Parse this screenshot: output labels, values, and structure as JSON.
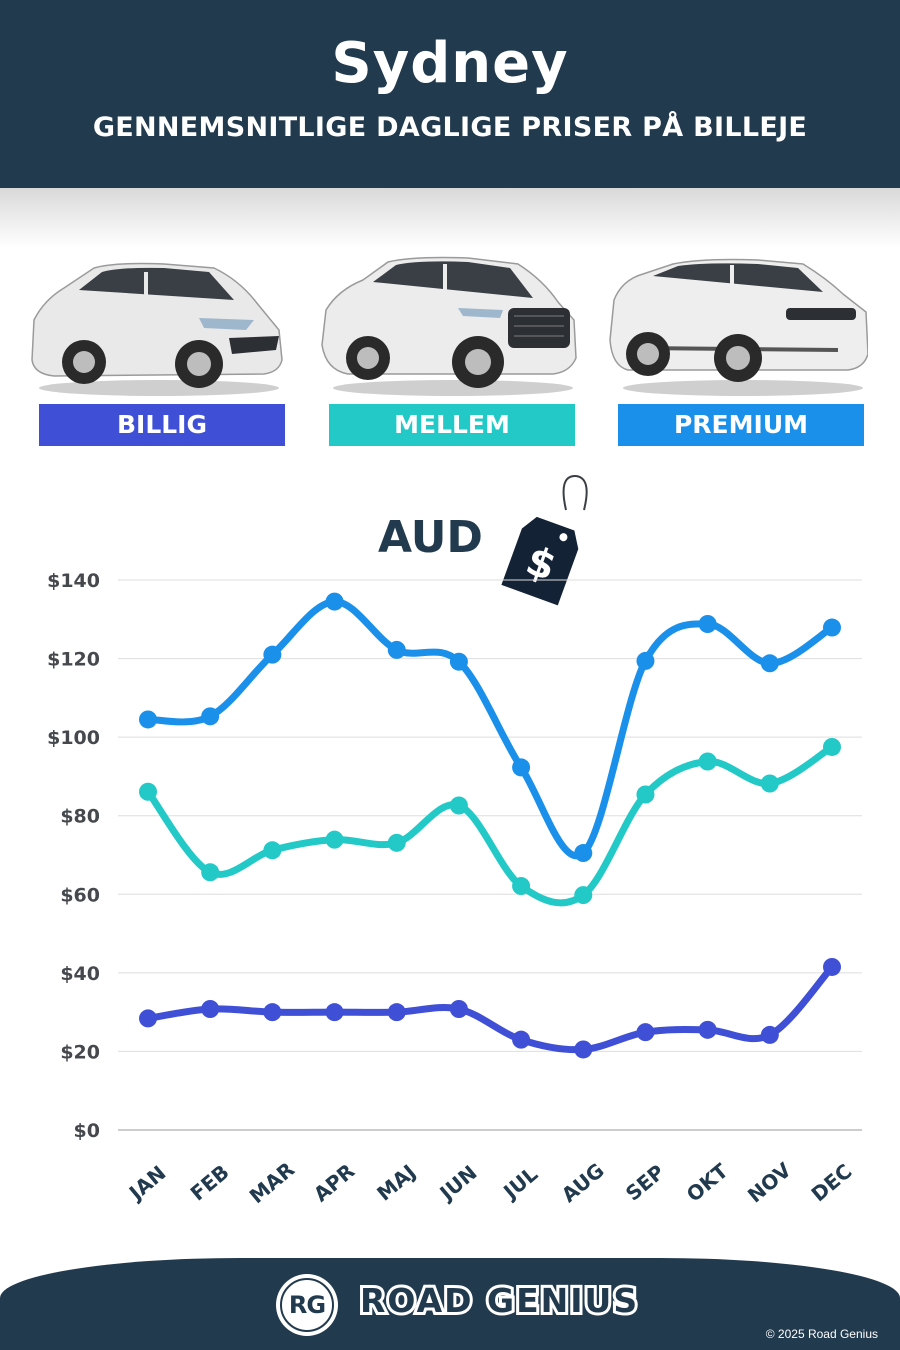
{
  "header": {
    "title": "Sydney",
    "subtitle": "GENNEMSNITLIGE DAGLIGE PRISER PÅ BILLEJE"
  },
  "categories": [
    {
      "label": "BILLIG",
      "color": "#3f4fd6"
    },
    {
      "label": "MELLEM",
      "color": "#22c9c7"
    },
    {
      "label": "PREMIUM",
      "color": "#1b90ea"
    }
  ],
  "currency": {
    "label": "AUD",
    "tag_symbol": "$"
  },
  "chart_data": {
    "type": "line",
    "categories": [
      "JAN",
      "FEB",
      "MAR",
      "APR",
      "MAJ",
      "JUN",
      "JUL",
      "AUG",
      "SEP",
      "OKT",
      "NOV",
      "DEC"
    ],
    "series": [
      {
        "name": "PREMIUM",
        "color": "#1b90ea",
        "values": [
          104.5,
          105.3,
          121,
          134.5,
          122.2,
          119.2,
          92.3,
          70.5,
          119.4,
          128.8,
          118.8,
          127.9
        ]
      },
      {
        "name": "MELLEM",
        "color": "#22c9c7",
        "values": [
          86.1,
          65.6,
          71.2,
          73.9,
          73.1,
          82.6,
          62.1,
          59.8,
          85.4,
          93.8,
          88.2,
          97.5
        ]
      },
      {
        "name": "BILLIG",
        "color": "#3f4fd6",
        "values": [
          28.4,
          30.8,
          30.0,
          30.0,
          30.0,
          30.8,
          23.0,
          20.5,
          24.9,
          25.5,
          24.2,
          41.5
        ]
      }
    ],
    "y_ticks": [
      "$0",
      "$20",
      "$40",
      "$60",
      "$80",
      "$100",
      "$120",
      "$140"
    ],
    "ylim": [
      0,
      140
    ],
    "grid": true
  },
  "footer": {
    "logo_text": "RG",
    "brand": "ROAD GENIUS",
    "copyright": "© 2025 Road Genius"
  }
}
